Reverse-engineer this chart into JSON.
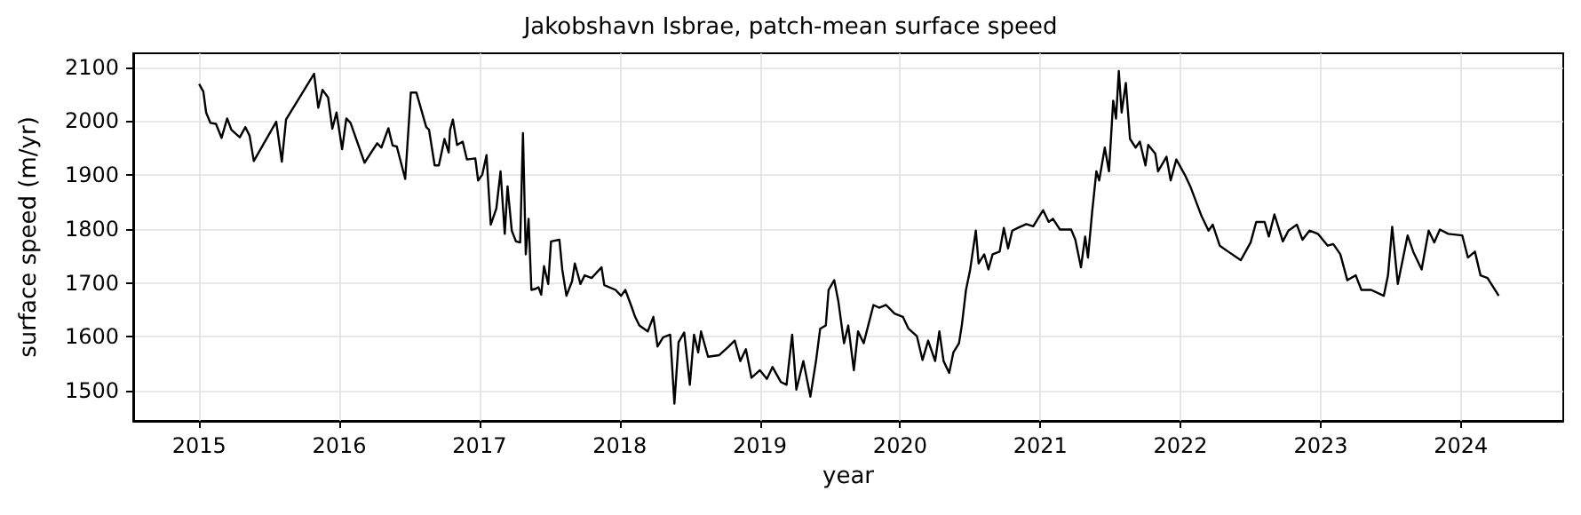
{
  "chart_data": {
    "type": "line",
    "title": "Jakobshavn Isbrae, patch-mean surface speed",
    "xlabel": "year",
    "ylabel": "surface speed (m/yr)",
    "color": "#000000",
    "grid": true,
    "marker": "none",
    "line_style": "solid",
    "xlim": [
      2014.53,
      2024.73
    ],
    "xticks": [
      2015,
      2016,
      2017,
      2018,
      2019,
      2020,
      2021,
      2022,
      2023,
      2024
    ],
    "ylim": [
      1444,
      2126
    ],
    "yticks": [
      1500,
      1600,
      1700,
      1800,
      1900,
      2000,
      2100
    ],
    "x": [
      2015.0,
      2015.03,
      2015.05,
      2015.08,
      2015.12,
      2015.16,
      2015.2,
      2015.23,
      2015.29,
      2015.33,
      2015.36,
      2015.39,
      2015.55,
      2015.59,
      2015.62,
      2015.82,
      2015.85,
      2015.88,
      2015.92,
      2015.95,
      2015.98,
      2016.02,
      2016.05,
      2016.08,
      2016.18,
      2016.27,
      2016.3,
      2016.35,
      2016.38,
      2016.41,
      2016.47,
      2016.51,
      2016.55,
      2016.62,
      2016.64,
      2016.68,
      2016.71,
      2016.75,
      2016.78,
      2016.79,
      2016.81,
      2016.84,
      2016.88,
      2016.91,
      2016.97,
      2016.99,
      2017.02,
      2017.05,
      2017.08,
      2017.12,
      2017.15,
      2017.18,
      2017.2,
      2017.23,
      2017.26,
      2017.29,
      2017.31,
      2017.33,
      2017.35,
      2017.37,
      2017.4,
      2017.42,
      2017.44,
      2017.46,
      2017.49,
      2017.51,
      2017.57,
      2017.59,
      2017.62,
      2017.66,
      2017.68,
      2017.72,
      2017.75,
      2017.8,
      2017.87,
      2017.89,
      2017.97,
      2018.01,
      2018.04,
      2018.08,
      2018.11,
      2018.14,
      2018.2,
      2018.24,
      2018.27,
      2018.31,
      2018.36,
      2018.39,
      2018.42,
      2018.46,
      2018.5,
      2018.53,
      2018.56,
      2018.58,
      2018.63,
      2018.71,
      2018.77,
      2018.82,
      2018.86,
      2018.9,
      2018.94,
      2019.0,
      2019.05,
      2019.09,
      2019.15,
      2019.19,
      2019.23,
      2019.26,
      2019.31,
      2019.36,
      2019.4,
      2019.43,
      2019.47,
      2019.49,
      2019.53,
      2019.56,
      2019.6,
      2019.63,
      2019.67,
      2019.7,
      2019.74,
      2019.81,
      2019.85,
      2019.9,
      2019.96,
      2020.02,
      2020.06,
      2020.12,
      2020.16,
      2020.2,
      2020.25,
      2020.28,
      2020.31,
      2020.35,
      2020.38,
      2020.42,
      2020.44,
      2020.47,
      2020.5,
      2020.54,
      2020.56,
      2020.6,
      2020.63,
      2020.66,
      2020.71,
      2020.74,
      2020.77,
      2020.8,
      2020.84,
      2020.9,
      2020.95,
      2021.02,
      2021.06,
      2021.09,
      2021.14,
      2021.22,
      2021.25,
      2021.29,
      2021.32,
      2021.34,
      2021.37,
      2021.4,
      2021.42,
      2021.46,
      2021.49,
      2021.52,
      2021.54,
      2021.56,
      2021.58,
      2021.61,
      2021.64,
      2021.68,
      2021.71,
      2021.75,
      2021.77,
      2021.82,
      2021.84,
      2021.9,
      2021.93,
      2021.97,
      2022.03,
      2022.07,
      2022.15,
      2022.2,
      2022.23,
      2022.28,
      2022.34,
      2022.43,
      2022.5,
      2022.54,
      2022.6,
      2022.63,
      2022.67,
      2022.73,
      2022.77,
      2022.83,
      2022.87,
      2022.92,
      2022.98,
      2023.05,
      2023.09,
      2023.14,
      2023.19,
      2023.25,
      2023.29,
      2023.36,
      2023.45,
      2023.48,
      2023.51,
      2023.55,
      2023.62,
      2023.66,
      2023.72,
      2023.77,
      2023.81,
      2023.85,
      2023.91,
      2024.01,
      2024.05,
      2024.1,
      2024.14,
      2024.19,
      2024.27
    ],
    "values": [
      2069,
      2055,
      2016,
      1997,
      1995,
      1969,
      2005,
      1984,
      1970,
      1989,
      1973,
      1926,
      1999,
      1925,
      2003,
      2088,
      2025,
      2058,
      2044,
      1986,
      2016,
      1948,
      2005,
      1997,
      1923,
      1959,
      1951,
      1987,
      1955,
      1953,
      1893,
      2053,
      2053,
      1989,
      1984,
      1918,
      1918,
      1967,
      1942,
      1984,
      2003,
      1956,
      1962,
      1929,
      1931,
      1890,
      1901,
      1937,
      1808,
      1838,
      1907,
      1791,
      1879,
      1797,
      1777,
      1775,
      1978,
      1753,
      1819,
      1687,
      1689,
      1692,
      1678,
      1731,
      1698,
      1777,
      1780,
      1725,
      1676,
      1703,
      1736,
      1698,
      1714,
      1709,
      1729,
      1696,
      1687,
      1676,
      1687,
      1659,
      1637,
      1621,
      1610,
      1637,
      1582,
      1599,
      1604,
      1476,
      1590,
      1608,
      1511,
      1604,
      1571,
      1610,
      1563,
      1566,
      1580,
      1593,
      1555,
      1577,
      1524,
      1538,
      1522,
      1544,
      1516,
      1511,
      1604,
      1502,
      1555,
      1489,
      1555,
      1615,
      1621,
      1687,
      1705,
      1665,
      1588,
      1621,
      1538,
      1610,
      1588,
      1659,
      1654,
      1659,
      1643,
      1637,
      1615,
      1601,
      1557,
      1593,
      1555,
      1610,
      1555,
      1533,
      1571,
      1588,
      1621,
      1687,
      1725,
      1797,
      1736,
      1753,
      1725,
      1753,
      1758,
      1802,
      1764,
      1797,
      1802,
      1809,
      1805,
      1835,
      1813,
      1819,
      1799,
      1799,
      1780,
      1729,
      1786,
      1747,
      1832,
      1907,
      1890,
      1951,
      1907,
      2038,
      2005,
      2093,
      2016,
      2071,
      1967,
      1951,
      1962,
      1918,
      1956,
      1940,
      1907,
      1934,
      1890,
      1929,
      1901,
      1879,
      1824,
      1797,
      1808,
      1769,
      1758,
      1742,
      1775,
      1813,
      1813,
      1786,
      1827,
      1777,
      1797,
      1808,
      1780,
      1797,
      1791,
      1769,
      1772,
      1753,
      1705,
      1714,
      1687,
      1687,
      1676,
      1714,
      1804,
      1698,
      1788,
      1758,
      1725,
      1797,
      1775,
      1799,
      1791,
      1788,
      1747,
      1758,
      1714,
      1709,
      1676
    ]
  }
}
